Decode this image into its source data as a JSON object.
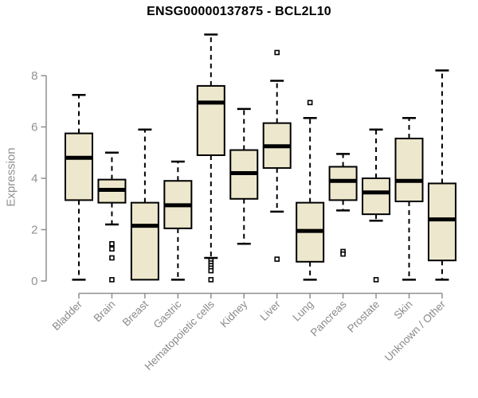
{
  "colors": {
    "box_fill": "#EDE7CD",
    "box_stroke": "#000000",
    "median_stroke": "#000000",
    "whisker_stroke": "#000000",
    "outlier_stroke": "#000000",
    "axis_line": "#8f8f8f",
    "tick_label": "#919191",
    "category_label": "#8a8a8a",
    "title_text": "#000000",
    "background": "#ffffff"
  },
  "chart_data": {
    "type": "boxplot",
    "title": "ENSG00000137875 - BCL2L10",
    "xlabel": "",
    "ylabel": "Expression",
    "ylim": [
      0,
      8
    ],
    "yticks": [
      0,
      2,
      4,
      6,
      8
    ],
    "grid": false,
    "legend": "none",
    "categories": [
      "Bladder",
      "Brain",
      "Breast",
      "Gastric",
      "Hematopoietic cells",
      "Kidney",
      "Liver",
      "Lung",
      "Pancreas",
      "Prostate",
      "Skin",
      "Unknown / Other"
    ],
    "series": [
      {
        "name": "Bladder",
        "whisker_low": 0.05,
        "q1": 3.15,
        "median": 4.8,
        "q3": 5.75,
        "whisker_high": 7.25,
        "outliers": []
      },
      {
        "name": "Brain",
        "whisker_low": 2.2,
        "q1": 3.05,
        "median": 3.55,
        "q3": 3.95,
        "whisker_high": 5.0,
        "outliers": [
          1.45,
          1.25,
          0.9,
          0.05
        ]
      },
      {
        "name": "Breast",
        "whisker_low": 0.05,
        "q1": 0.05,
        "median": 2.15,
        "q3": 3.05,
        "whisker_high": 5.9,
        "outliers": []
      },
      {
        "name": "Gastric",
        "whisker_low": 0.05,
        "q1": 2.05,
        "median": 2.95,
        "q3": 3.9,
        "whisker_high": 4.65,
        "outliers": []
      },
      {
        "name": "Hematopoietic cells",
        "whisker_low": 0.9,
        "q1": 4.9,
        "median": 6.95,
        "q3": 7.6,
        "whisker_high": 9.6,
        "outliers": [
          0.8,
          0.7,
          0.6,
          0.5,
          0.4,
          0.05
        ]
      },
      {
        "name": "Kidney",
        "whisker_low": 1.45,
        "q1": 3.2,
        "median": 4.2,
        "q3": 5.1,
        "whisker_high": 6.7,
        "outliers": []
      },
      {
        "name": "Liver",
        "whisker_low": 2.7,
        "q1": 4.4,
        "median": 5.25,
        "q3": 6.15,
        "whisker_high": 7.8,
        "outliers": [
          8.9,
          0.85
        ]
      },
      {
        "name": "Lung",
        "whisker_low": 0.05,
        "q1": 0.75,
        "median": 1.95,
        "q3": 3.05,
        "whisker_high": 6.35,
        "outliers": [
          6.95
        ]
      },
      {
        "name": "Pancreas",
        "whisker_low": 2.75,
        "q1": 3.15,
        "median": 3.9,
        "q3": 4.45,
        "whisker_high": 4.95,
        "outliers": [
          1.15,
          1.05
        ]
      },
      {
        "name": "Prostate",
        "whisker_low": 2.35,
        "q1": 2.6,
        "median": 3.45,
        "q3": 4.0,
        "whisker_high": 5.9,
        "outliers": [
          0.05
        ]
      },
      {
        "name": "Skin",
        "whisker_low": 0.05,
        "q1": 3.1,
        "median": 3.9,
        "q3": 5.55,
        "whisker_high": 6.35,
        "outliers": []
      },
      {
        "name": "Unknown / Other",
        "whisker_low": 0.05,
        "q1": 0.8,
        "median": 2.4,
        "q3": 3.8,
        "whisker_high": 8.2,
        "outliers": []
      }
    ]
  }
}
